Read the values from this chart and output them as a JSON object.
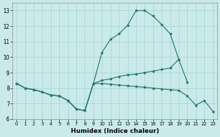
{
  "xlabel": "Humidex (Indice chaleur)",
  "x_values": [
    0,
    1,
    2,
    3,
    4,
    5,
    6,
    7,
    8,
    9,
    10,
    11,
    12,
    13,
    14,
    15,
    16,
    17,
    18,
    19,
    20,
    21,
    22,
    23
  ],
  "line1": [
    8.3,
    8.0,
    7.9,
    7.75,
    7.55,
    7.5,
    7.2,
    6.65,
    6.55,
    8.3,
    10.3,
    11.15,
    11.5,
    12.05,
    13.0,
    13.0,
    12.65,
    12.1,
    11.5,
    9.85,
    null,
    null,
    null,
    null
  ],
  "line2": [
    8.3,
    8.0,
    7.9,
    7.75,
    7.55,
    7.5,
    7.2,
    6.65,
    6.55,
    8.3,
    8.5,
    8.6,
    8.75,
    8.85,
    8.9,
    9.0,
    9.1,
    9.2,
    9.3,
    9.85,
    8.4,
    null,
    null,
    null
  ],
  "line3": [
    8.3,
    8.0,
    7.9,
    7.75,
    7.55,
    7.5,
    7.2,
    6.65,
    6.55,
    8.3,
    8.3,
    8.25,
    8.2,
    8.15,
    8.1,
    8.05,
    8.0,
    7.95,
    7.9,
    7.85,
    7.5,
    6.9,
    7.2,
    6.5
  ],
  "bg_color": "#caeaea",
  "grid_color": "#a8d4d4",
  "line_color": "#2a7a70",
  "ylim": [
    6.0,
    13.5
  ],
  "yticks": [
    6,
    7,
    8,
    9,
    10,
    11,
    12,
    13
  ],
  "xlim": [
    -0.5,
    23.5
  ],
  "xticks": [
    0,
    1,
    2,
    3,
    4,
    5,
    6,
    7,
    8,
    9,
    10,
    11,
    12,
    13,
    14,
    15,
    16,
    17,
    18,
    19,
    20,
    21,
    22,
    23
  ]
}
